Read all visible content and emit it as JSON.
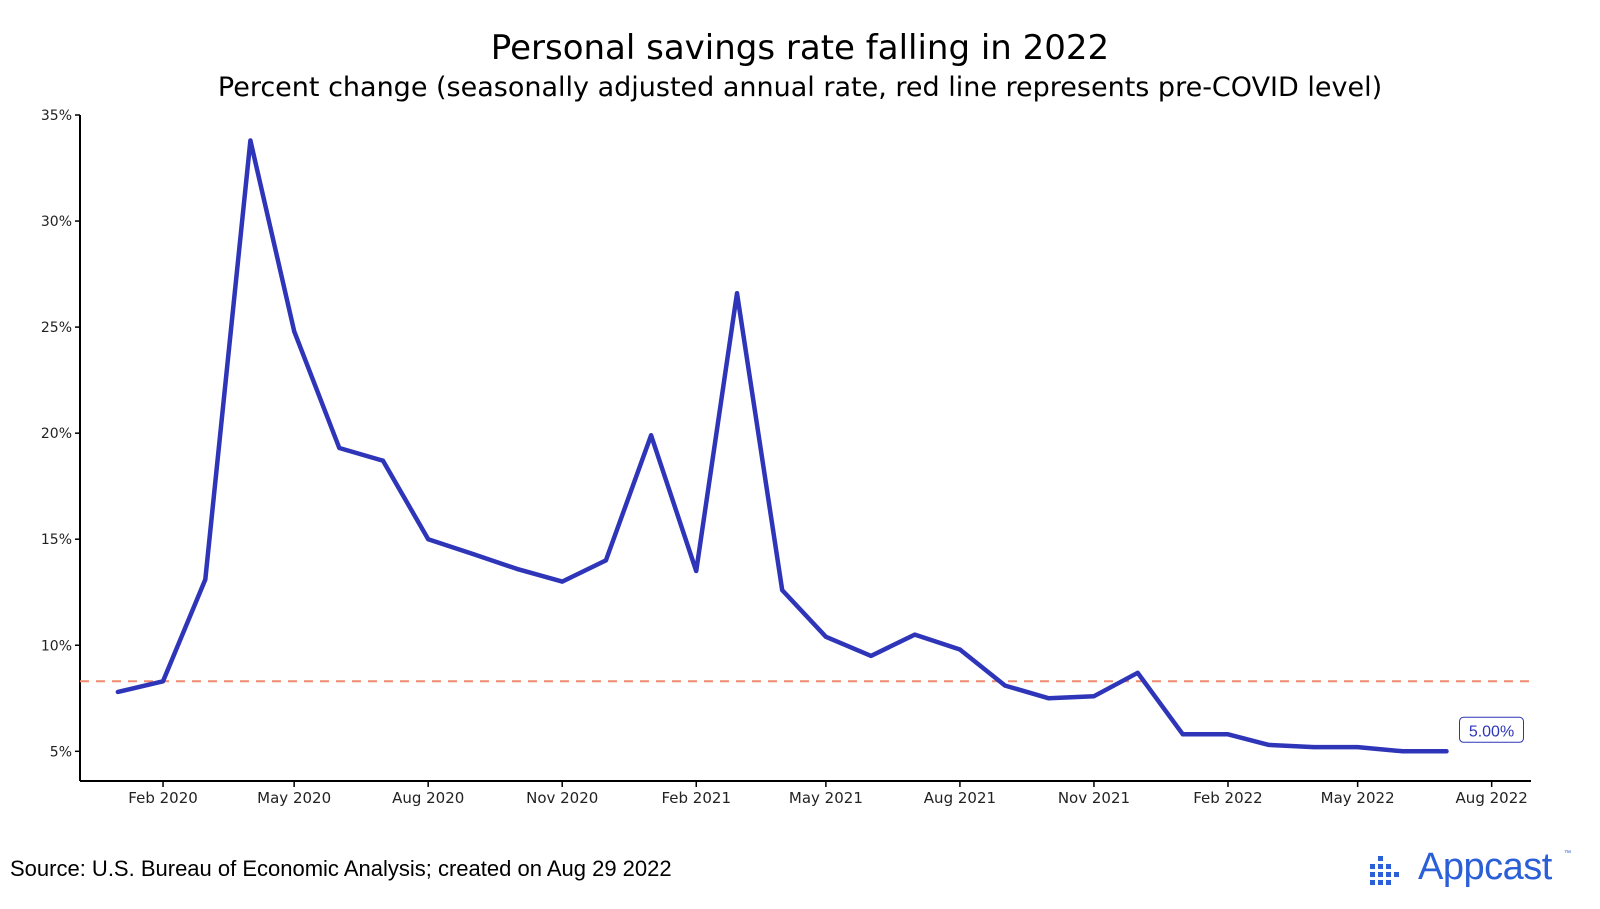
{
  "title": "Personal savings rate falling in 2022",
  "subtitle": "Percent change (seasonally adjusted annual rate, red line represents pre-COVID level)",
  "source": "Source: U.S. Bureau of Economic Analysis; created on Aug 29 2022",
  "brand": {
    "name": "Appcast",
    "trademark": "™",
    "color": "#2a5fd8"
  },
  "chart_data": {
    "type": "line",
    "title": "Personal savings rate falling in 2022",
    "subtitle": "Percent change (seasonally adjusted annual rate, red line represents pre-COVID level)",
    "xlabel": "",
    "ylabel": "",
    "ylim": [
      3.6,
      35
    ],
    "xlim": [
      "2019-12-06",
      "2022-08-28"
    ],
    "grid": false,
    "line_color": "#2f35b8",
    "reference_line": {
      "value": 8.3,
      "color": "#f08a6e",
      "style": "dashed"
    },
    "y_ticks": [
      {
        "value": 5,
        "label": "5%"
      },
      {
        "value": 10,
        "label": "10%"
      },
      {
        "value": 15,
        "label": "15%"
      },
      {
        "value": 20,
        "label": "20%"
      },
      {
        "value": 25,
        "label": "25%"
      },
      {
        "value": 30,
        "label": "30%"
      },
      {
        "value": 35,
        "label": "35%"
      }
    ],
    "x_ticks": [
      {
        "date": "2020-02-01",
        "label": "Feb 2020"
      },
      {
        "date": "2020-05-01",
        "label": "May 2020"
      },
      {
        "date": "2020-08-01",
        "label": "Aug 2020"
      },
      {
        "date": "2020-11-01",
        "label": "Nov 2020"
      },
      {
        "date": "2021-02-01",
        "label": "Feb 2021"
      },
      {
        "date": "2021-05-01",
        "label": "May 2021"
      },
      {
        "date": "2021-08-01",
        "label": "Aug 2021"
      },
      {
        "date": "2021-11-01",
        "label": "Nov 2021"
      },
      {
        "date": "2022-02-01",
        "label": "Feb 2022"
      },
      {
        "date": "2022-05-01",
        "label": "May 2022"
      },
      {
        "date": "2022-08-01",
        "label": "Aug 2022"
      }
    ],
    "series": [
      {
        "points": [
          {
            "x": "2020-01-01",
            "y": 7.8
          },
          {
            "x": "2020-02-01",
            "y": 8.3
          },
          {
            "x": "2020-03-01",
            "y": 13.1
          },
          {
            "x": "2020-04-01",
            "y": 33.8
          },
          {
            "x": "2020-05-01",
            "y": 24.8
          },
          {
            "x": "2020-06-01",
            "y": 19.3
          },
          {
            "x": "2020-07-01",
            "y": 18.7
          },
          {
            "x": "2020-08-01",
            "y": 15.0
          },
          {
            "x": "2020-09-01",
            "y": 14.3
          },
          {
            "x": "2020-10-01",
            "y": 13.6
          },
          {
            "x": "2020-11-01",
            "y": 13.0
          },
          {
            "x": "2020-12-01",
            "y": 14.0
          },
          {
            "x": "2021-01-01",
            "y": 19.9
          },
          {
            "x": "2021-02-01",
            "y": 13.5
          },
          {
            "x": "2021-03-01",
            "y": 26.6
          },
          {
            "x": "2021-04-01",
            "y": 12.6
          },
          {
            "x": "2021-05-01",
            "y": 10.4
          },
          {
            "x": "2021-06-01",
            "y": 9.5
          },
          {
            "x": "2021-07-01",
            "y": 10.5
          },
          {
            "x": "2021-08-01",
            "y": 9.8
          },
          {
            "x": "2021-09-01",
            "y": 8.1
          },
          {
            "x": "2021-10-01",
            "y": 7.5
          },
          {
            "x": "2021-11-01",
            "y": 7.6
          },
          {
            "x": "2021-12-01",
            "y": 8.7
          },
          {
            "x": "2022-01-01",
            "y": 5.8
          },
          {
            "x": "2022-02-01",
            "y": 5.8
          },
          {
            "x": "2022-03-01",
            "y": 5.3
          },
          {
            "x": "2022-04-01",
            "y": 5.2
          },
          {
            "x": "2022-05-01",
            "y": 5.2
          },
          {
            "x": "2022-06-01",
            "y": 5.0
          },
          {
            "x": "2022-07-01",
            "y": 5.0
          }
        ]
      }
    ],
    "annotations": [
      {
        "x": "2022-07-01",
        "y": 5.0,
        "text": "5.00%"
      }
    ]
  }
}
